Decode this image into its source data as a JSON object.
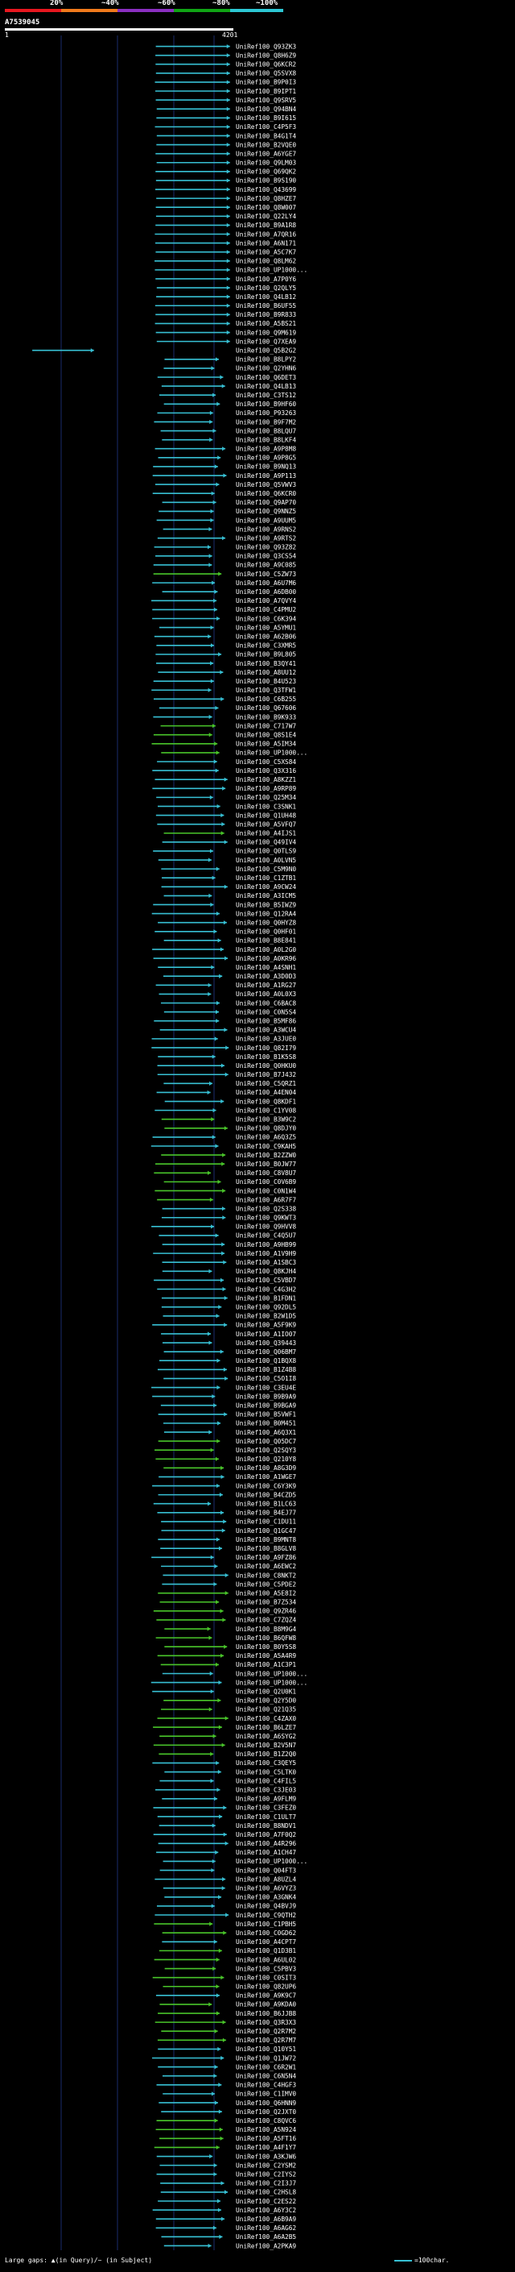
{
  "scale": {
    "ticks": [
      "20%",
      "~40%",
      "~60%",
      "~80%",
      "~100%"
    ],
    "colors": [
      "#e8171f",
      "#f07a1c",
      "#8a2fc0",
      "#10a515",
      "#2cc7d4"
    ]
  },
  "query": {
    "id": "A7539045",
    "start": "1",
    "end": "4201"
  },
  "colors": {
    "cyan": "#37c0d4",
    "green": "#49c52a",
    "bg": "#000000",
    "grid": "#1a2b6b"
  },
  "hits": [
    [
      "UniRef100_Q93ZK3",
      "c"
    ],
    [
      "UniRef100_Q8H6Z9",
      "c"
    ],
    [
      "UniRef100_Q6KCR2",
      "c"
    ],
    [
      "UniRef100_Q5SVX8",
      "c"
    ],
    [
      "UniRef100_B9P0I3",
      "c"
    ],
    [
      "UniRef100_B9IPT1",
      "c"
    ],
    [
      "UniRef100_Q9SRV5",
      "c"
    ],
    [
      "UniRef100_Q94BN4",
      "c"
    ],
    [
      "UniRef100_B9I615",
      "c"
    ],
    [
      "UniRef100_C4P5F3",
      "c"
    ],
    [
      "UniRef100_B4G1T4",
      "c"
    ],
    [
      "UniRef100_B2VQE0",
      "c"
    ],
    [
      "UniRef100_A6YGE7",
      "c"
    ],
    [
      "UniRef100_Q9LM03",
      "c"
    ],
    [
      "UniRef100_Q69QK2",
      "c"
    ],
    [
      "UniRef100_B9S190",
      "c"
    ],
    [
      "UniRef100_Q43699",
      "c"
    ],
    [
      "UniRef100_Q8HZE7",
      "c"
    ],
    [
      "UniRef100_Q8W007",
      "c"
    ],
    [
      "UniRef100_Q22LY4",
      "c"
    ],
    [
      "UniRef100_B9A1R8",
      "c"
    ],
    [
      "UniRef100_A7QR16",
      "c"
    ],
    [
      "UniRef100_A6N171",
      "c"
    ],
    [
      "UniRef100_A5C7K7",
      "c"
    ],
    [
      "UniRef100_Q8LM62",
      "c"
    ],
    [
      "UniRef100_UP1000...",
      "c"
    ],
    [
      "UniRef100_A7P0Y6",
      "c"
    ],
    [
      "UniRef100_Q2QLY5",
      "c"
    ],
    [
      "UniRef100_Q4LB12",
      "c"
    ],
    [
      "UniRef100_B6UF55",
      "c"
    ],
    [
      "UniRef100_B9R833",
      "c"
    ],
    [
      "UniRef100_A5BS21",
      "c"
    ],
    [
      "UniRef100_Q9M619",
      "c"
    ],
    [
      "UniRef100_Q7XEA9",
      "c"
    ],
    [
      "UniRef100_Q5B2G2",
      "c"
    ],
    [
      "UniRef100_B8LPY2",
      "c"
    ],
    [
      "UniRef100_Q2YHN6",
      "c"
    ],
    [
      "UniRef100_Q6DET3",
      "c"
    ],
    [
      "UniRef100_Q4LB13",
      "c"
    ],
    [
      "UniRef100_C3TS12",
      "c"
    ],
    [
      "UniRef100_B9HF60",
      "c"
    ],
    [
      "UniRef100_P93263",
      "c"
    ],
    [
      "UniRef100_B9F7M2",
      "c"
    ],
    [
      "UniRef100_B8LQU7",
      "c"
    ],
    [
      "UniRef100_B8LKF4",
      "c"
    ],
    [
      "UniRef100_A9P8M8",
      "c"
    ],
    [
      "UniRef100_A9P8G5",
      "c"
    ],
    [
      "UniRef100_B9NQ13",
      "c"
    ],
    [
      "UniRef100_A9P113",
      "c"
    ],
    [
      "UniRef100_Q5VWV3",
      "c"
    ],
    [
      "UniRef100_Q6KCR0",
      "c"
    ],
    [
      "UniRef100_Q9AP70",
      "c"
    ],
    [
      "UniRef100_Q9NNZ5",
      "c"
    ],
    [
      "UniRef100_A9UUM5",
      "c"
    ],
    [
      "UniRef100_A9RNS2",
      "c"
    ],
    [
      "UniRef100_A9RTS2",
      "c"
    ],
    [
      "UniRef100_Q93Z82",
      "c"
    ],
    [
      "UniRef100_Q3CS54",
      "c"
    ],
    [
      "UniRef100_A9C085",
      "c"
    ],
    [
      "UniRef100_C5ZW73",
      "g"
    ],
    [
      "UniRef100_A6U7M6",
      "c"
    ],
    [
      "UniRef100_A6DB00",
      "c"
    ],
    [
      "UniRef100_A7QVY4",
      "c"
    ],
    [
      "UniRef100_C4PMU2",
      "c"
    ],
    [
      "UniRef100_C6K394",
      "c"
    ],
    [
      "UniRef100_A5YMU1",
      "c"
    ],
    [
      "UniRef100_A62B06",
      "c"
    ],
    [
      "UniRef100_C3XMR5",
      "c"
    ],
    [
      "UniRef100_B9L805",
      "c"
    ],
    [
      "UniRef100_B3QY41",
      "c"
    ],
    [
      "UniRef100_A8UU12",
      "c"
    ],
    [
      "UniRef100_B4U523",
      "c"
    ],
    [
      "UniRef100_Q3TFW1",
      "c"
    ],
    [
      "UniRef100_C6B255",
      "c"
    ],
    [
      "UniRef100_Q67606",
      "c"
    ],
    [
      "UniRef100_B9K933",
      "c"
    ],
    [
      "UniRef100_C717W7",
      "g"
    ],
    [
      "UniRef100_Q8S1E4",
      "g"
    ],
    [
      "UniRef100_A5IM34",
      "g"
    ],
    [
      "UniRef100_UP1000...",
      "g"
    ],
    [
      "UniRef100_C5XS84",
      "c"
    ],
    [
      "UniRef100_Q3X316",
      "c"
    ],
    [
      "UniRef100_A8KZZ1",
      "c"
    ],
    [
      "UniRef100_A9RP89",
      "c"
    ],
    [
      "UniRef100_Q25M34",
      "c"
    ],
    [
      "UniRef100_C3SNK1",
      "c"
    ],
    [
      "UniRef100_Q1UH48",
      "c"
    ],
    [
      "UniRef100_A5VFQ7",
      "c"
    ],
    [
      "UniRef100_A4IJS1",
      "g"
    ],
    [
      "UniRef100_Q49IV4",
      "c"
    ],
    [
      "UniRef100_Q0TLS9",
      "c"
    ],
    [
      "UniRef100_A0LVN5",
      "c"
    ],
    [
      "UniRef100_C5M9N0",
      "c"
    ],
    [
      "UniRef100_C1ZTB1",
      "c"
    ],
    [
      "UniRef100_A9CW24",
      "c"
    ],
    [
      "UniRef100_A3ICM5",
      "c"
    ],
    [
      "UniRef100_B5IWZ9",
      "c"
    ],
    [
      "UniRef100_Q12RA4",
      "c"
    ],
    [
      "UniRef100_Q0HYZ8",
      "c"
    ],
    [
      "UniRef100_Q0HF01",
      "c"
    ],
    [
      "UniRef100_B8E841",
      "c"
    ],
    [
      "UniRef100_A0L2G0",
      "c"
    ],
    [
      "UniRef100_A0KR96",
      "c"
    ],
    [
      "UniRef100_A4SNH1",
      "c"
    ],
    [
      "UniRef100_A3D0D3",
      "c"
    ],
    [
      "UniRef100_A1RG27",
      "c"
    ],
    [
      "UniRef100_A0L0X3",
      "c"
    ],
    [
      "UniRef100_C6BAC8",
      "c"
    ],
    [
      "UniRef100_C0N5S4",
      "c"
    ],
    [
      "UniRef100_B5MF86",
      "c"
    ],
    [
      "UniRef100_A3WCU4",
      "c"
    ],
    [
      "UniRef100_A3JUE0",
      "c"
    ],
    [
      "UniRef100_Q82I79",
      "c"
    ],
    [
      "UniRef100_B1K5S8",
      "c"
    ],
    [
      "UniRef100_Q0HKU0",
      "c"
    ],
    [
      "UniRef100_B7J432",
      "c"
    ],
    [
      "UniRef100_C5QRZ1",
      "c"
    ],
    [
      "UniRef100_A4EN04",
      "c"
    ],
    [
      "UniRef100_Q8KDF1",
      "c"
    ],
    [
      "UniRef100_C1YV08",
      "c"
    ],
    [
      "UniRef100_B3W9C2",
      "g"
    ],
    [
      "UniRef100_Q8DJY0",
      "g"
    ],
    [
      "UniRef100_A6Q3Z5",
      "c"
    ],
    [
      "UniRef100_C9KAH5",
      "c"
    ],
    [
      "UniRef100_B2ZZW0",
      "g"
    ],
    [
      "UniRef100_B0JW77",
      "g"
    ],
    [
      "UniRef100_C8V8U7",
      "g"
    ],
    [
      "UniRef100_C0V6B9",
      "g"
    ],
    [
      "UniRef100_C0N1W4",
      "g"
    ],
    [
      "UniRef100_A6R7F7",
      "g"
    ],
    [
      "UniRef100_Q2S338",
      "c"
    ],
    [
      "UniRef100_Q9KWT3",
      "c"
    ],
    [
      "UniRef100_Q9HVV8",
      "c"
    ],
    [
      "UniRef100_C4Q5U7",
      "c"
    ],
    [
      "UniRef100_A9HB99",
      "c"
    ],
    [
      "UniRef100_A1V9H9",
      "c"
    ],
    [
      "UniRef100_A1SBC3",
      "c"
    ],
    [
      "UniRef100_Q8KJH4",
      "c"
    ],
    [
      "UniRef100_C5VBD7",
      "c"
    ],
    [
      "UniRef100_C4G3H2",
      "c"
    ],
    [
      "UniRef100_B1FDN1",
      "c"
    ],
    [
      "UniRef100_Q92DL5",
      "c"
    ],
    [
      "UniRef100_B2W1D5",
      "c"
    ],
    [
      "UniRef100_A5F9K9",
      "c"
    ],
    [
      "UniRef100_A1IO07",
      "c"
    ],
    [
      "UniRef100_Q39443",
      "c"
    ],
    [
      "UniRef100_Q06BM7",
      "c"
    ],
    [
      "UniRef100_Q1BQX8",
      "c"
    ],
    [
      "UniRef100_B1Z4B8",
      "c"
    ],
    [
      "UniRef100_C5O1I8",
      "c"
    ],
    [
      "UniRef100_C3EU4E",
      "c"
    ],
    [
      "UniRef100_B9B9A9",
      "c"
    ],
    [
      "UniRef100_B9BGA9",
      "c"
    ],
    [
      "UniRef100_B5VWF1",
      "c"
    ],
    [
      "UniRef100_B0M451",
      "c"
    ],
    [
      "UniRef100_A6Q3X1",
      "c"
    ],
    [
      "UniRef100_Q05DC7",
      "g"
    ],
    [
      "UniRef100_Q2SQY3",
      "g"
    ],
    [
      "UniRef100_Q210Y8",
      "g"
    ],
    [
      "UniRef100_A8G3D9",
      "g"
    ],
    [
      "UniRef100_A1WGE7",
      "c"
    ],
    [
      "UniRef100_C6Y3K9",
      "c"
    ],
    [
      "UniRef100_B4CZD5",
      "c"
    ],
    [
      "UniRef100_B1LC63",
      "c"
    ],
    [
      "UniRef100_B4EJ77",
      "c"
    ],
    [
      "UniRef100_C1DU11",
      "c"
    ],
    [
      "UniRef100_Q1GC47",
      "c"
    ],
    [
      "UniRef100_B9MNT8",
      "c"
    ],
    [
      "UniRef100_B8GLV8",
      "c"
    ],
    [
      "UniRef100_A9FZ86",
      "c"
    ],
    [
      "UniRef100_A6EWC2",
      "c"
    ],
    [
      "UniRef100_C8NKT2",
      "c"
    ],
    [
      "UniRef100_C5PDE2",
      "c"
    ],
    [
      "UniRef100_A5E8I2",
      "g"
    ],
    [
      "UniRef100_B7Z534",
      "g"
    ],
    [
      "UniRef100_Q9ZR46",
      "g"
    ],
    [
      "UniRef100_C7ZQZ4",
      "g"
    ],
    [
      "UniRef100_B8M9G4",
      "g"
    ],
    [
      "UniRef100_B6QFW8",
      "g"
    ],
    [
      "UniRef100_B0Y5S8",
      "g"
    ],
    [
      "UniRef100_A5A4R9",
      "g"
    ],
    [
      "UniRef100_A1C3P1",
      "g"
    ],
    [
      "UniRef100_UP1000...",
      "c"
    ],
    [
      "UniRef100_UP1000...",
      "c"
    ],
    [
      "UniRef100_Q2U0K1",
      "c"
    ],
    [
      "UniRef100_Q2Y5D0",
      "g"
    ],
    [
      "UniRef100_Q21Q35",
      "g"
    ],
    [
      "UniRef100_C4ZAX0",
      "g"
    ],
    [
      "UniRef100_B6LZE7",
      "g"
    ],
    [
      "UniRef100_A6SYG2",
      "g"
    ],
    [
      "UniRef100_B2V5N7",
      "g"
    ],
    [
      "UniRef100_B1Z2Q0",
      "g"
    ],
    [
      "UniRef100_C3QEY5",
      "c"
    ],
    [
      "UniRef100_C5LTK0",
      "c"
    ],
    [
      "UniRef100_C4FIL5",
      "c"
    ],
    [
      "UniRef100_C3JE03",
      "c"
    ],
    [
      "UniRef100_A9FLM9",
      "c"
    ],
    [
      "UniRef100_C3FEZ0",
      "c"
    ],
    [
      "UniRef100_C1ULT7",
      "c"
    ],
    [
      "UniRef100_B8NDV1",
      "c"
    ],
    [
      "UniRef100_A7F0Q2",
      "c"
    ],
    [
      "UniRef100_A4R296",
      "c"
    ],
    [
      "UniRef100_A1CH47",
      "c"
    ],
    [
      "UniRef100_UP1000...",
      "c"
    ],
    [
      "UniRef100_Q04FT3",
      "c"
    ],
    [
      "UniRef100_A8UZL4",
      "c"
    ],
    [
      "UniRef100_A6VYZ3",
      "c"
    ],
    [
      "UniRef100_A3GNK4",
      "c"
    ],
    [
      "UniRef100_Q4BVJ9",
      "c"
    ],
    [
      "UniRef100_C9QTH2",
      "c"
    ],
    [
      "UniRef100_C1PBH5",
      "g"
    ],
    [
      "UniRef100_C0GD62",
      "g"
    ],
    [
      "UniRef100_A4CPT7",
      "c"
    ],
    [
      "UniRef100_Q1D3B1",
      "g"
    ],
    [
      "UniRef100_A6UL02",
      "g"
    ],
    [
      "UniRef100_C5PBV3",
      "g"
    ],
    [
      "UniRef100_C0SIT3",
      "g"
    ],
    [
      "UniRef100_Q82UP6",
      "g"
    ],
    [
      "UniRef100_A9K9C7",
      "c"
    ],
    [
      "UniRef100_A9KDA0",
      "g"
    ],
    [
      "UniRef100_B6JJB8",
      "g"
    ],
    [
      "UniRef100_Q3R3X3",
      "g"
    ],
    [
      "UniRef100_Q2R7M2",
      "g"
    ],
    [
      "UniRef100_Q2R7M7",
      "g"
    ],
    [
      "UniRef100_Q10Y51",
      "c"
    ],
    [
      "UniRef100_Q1JW72",
      "c"
    ],
    [
      "UniRef100_C6R2W1",
      "c"
    ],
    [
      "UniRef100_C6N5N4",
      "c"
    ],
    [
      "UniRef100_C4HGF3",
      "c"
    ],
    [
      "UniRef100_C1IMV0",
      "c"
    ],
    [
      "UniRef100_Q6HNN9",
      "c"
    ],
    [
      "UniRef100_Q2JXT0",
      "c"
    ],
    [
      "UniRef100_C8QVC6",
      "g"
    ],
    [
      "UniRef100_A5N924",
      "g"
    ],
    [
      "UniRef100_A5FT16",
      "g"
    ],
    [
      "UniRef100_A4F1Y7",
      "g"
    ],
    [
      "UniRef100_A3KJW6",
      "c"
    ],
    [
      "UniRef100_C2YSM2",
      "c"
    ],
    [
      "UniRef100_C2IYS2",
      "c"
    ],
    [
      "UniRef100_C2I3J7",
      "c"
    ],
    [
      "UniRef100_C2HSL8",
      "c"
    ],
    [
      "UniRef100_C2ES22",
      "c"
    ],
    [
      "UniRef100_A6Y3C2",
      "c"
    ],
    [
      "UniRef100_A6B9A9",
      "c"
    ],
    [
      "UniRef100_A6AG62",
      "c"
    ],
    [
      "UniRef100_A6A2B5",
      "c"
    ],
    [
      "UniRef100_A2PKA9",
      "c"
    ]
  ],
  "special_hits": {
    "34": {
      "start_frac": 0.12,
      "end_frac": 0.39
    }
  },
  "footer": {
    "text": "Large gaps: ▲(in Query)/~ (in Subject)",
    "legend": "=100char."
  }
}
